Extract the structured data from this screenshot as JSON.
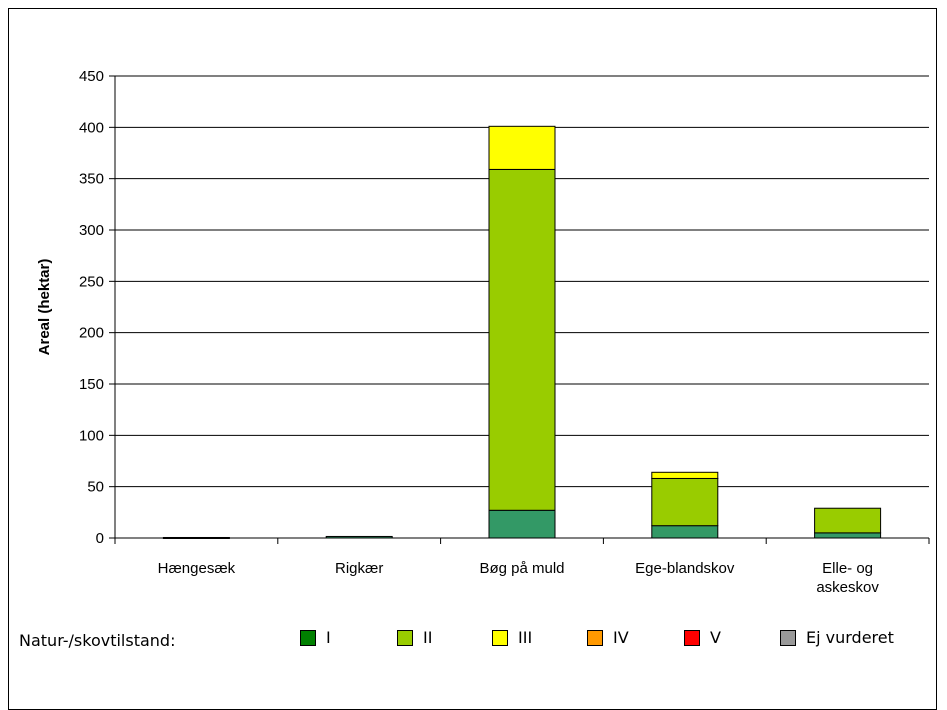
{
  "chart_data": {
    "type": "bar",
    "stacked": true,
    "categories": [
      "Hængesæk",
      "Rigkær",
      "Bøg på muld",
      "Ege-blandskov",
      "Elle- og askeskov"
    ],
    "category_lines": [
      [
        "Hængesæk"
      ],
      [
        "Rigkær"
      ],
      [
        "Bøg på muld"
      ],
      [
        "Ege-blandskov"
      ],
      [
        "Elle- og",
        "askeskov"
      ]
    ],
    "ylabel": "Areal (hektar)",
    "ylim": [
      0,
      450
    ],
    "yticks": [
      0,
      50,
      100,
      150,
      200,
      250,
      300,
      350,
      400,
      450
    ],
    "grid": true,
    "series": [
      {
        "name": "I",
        "color": "#339966",
        "values": [
          0.5,
          1.5,
          27,
          12,
          5
        ]
      },
      {
        "name": "II",
        "color": "#99cc00",
        "values": [
          0,
          0,
          332,
          46,
          24
        ]
      },
      {
        "name": "III",
        "color": "#ffff00",
        "values": [
          0,
          0,
          42,
          6,
          0
        ]
      },
      {
        "name": "IV",
        "color": "#ff9900",
        "values": [
          0,
          0,
          0,
          0,
          0
        ]
      },
      {
        "name": "V",
        "color": "#ff0000",
        "values": [
          0,
          0,
          0,
          0,
          0
        ]
      },
      {
        "name": "Ej vurderet",
        "color": "#999999",
        "values": [
          0,
          0,
          0,
          0,
          0
        ]
      }
    ]
  },
  "legend": {
    "title": "Natur-/skovtilstand:",
    "items": [
      {
        "label": "I",
        "color": "#008000"
      },
      {
        "label": "II",
        "color": "#99cc00"
      },
      {
        "label": "III",
        "color": "#ffff00"
      },
      {
        "label": "IV",
        "color": "#ff9900"
      },
      {
        "label": "V",
        "color": "#ff0000"
      },
      {
        "label": "Ej vurderet",
        "color": "#999999"
      }
    ]
  }
}
